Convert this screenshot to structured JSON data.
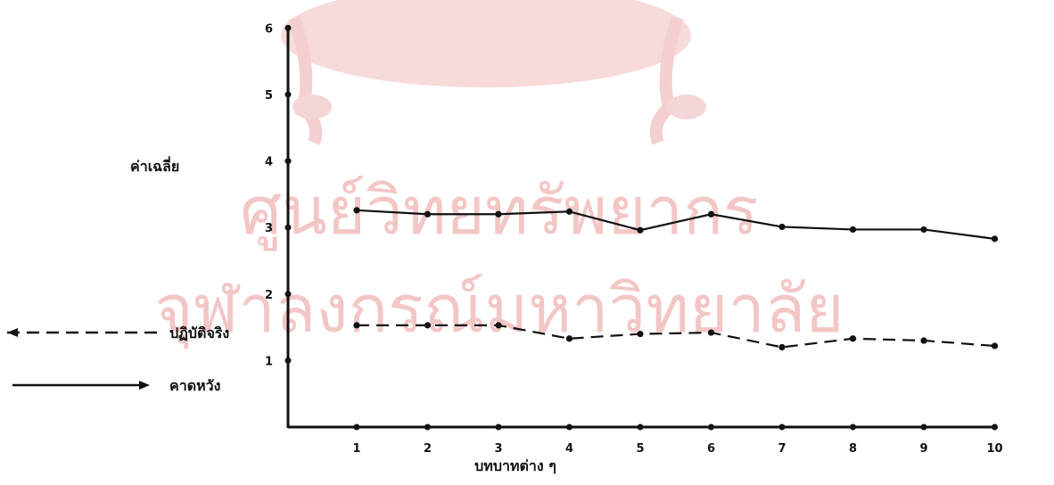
{
  "chart_data": {
    "type": "line",
    "categories": [
      "1",
      "2",
      "3",
      "4",
      "5",
      "6",
      "7",
      "8",
      "9",
      "10"
    ],
    "xlabel": "บทบาทต่าง ๆ",
    "ylabel": "ค่าเฉลี่ย",
    "ylim": [
      0,
      6
    ],
    "yticks": [
      "1",
      "2",
      "3",
      "4",
      "5",
      "6"
    ],
    "grid": false,
    "legend_position": "left",
    "series": [
      {
        "name": "คาดหวัง",
        "style": "solid",
        "values": [
          3.26,
          3.2,
          3.2,
          3.24,
          2.96,
          3.2,
          3.01,
          2.97,
          2.97,
          2.83
        ]
      },
      {
        "name": "ปฏิบัติจริง",
        "style": "dashed",
        "values": [
          1.53,
          1.53,
          1.53,
          1.33,
          1.4,
          1.42,
          1.2,
          1.33,
          1.3,
          1.22
        ]
      }
    ]
  },
  "watermark": {
    "line1": "ศูนย์วิทยทรัพยากร",
    "line2": "จุฬาลงกรณ์มหาวิทยาลัย"
  },
  "colors": {
    "ink": "#111111",
    "watermark": "#f3c6c6"
  }
}
